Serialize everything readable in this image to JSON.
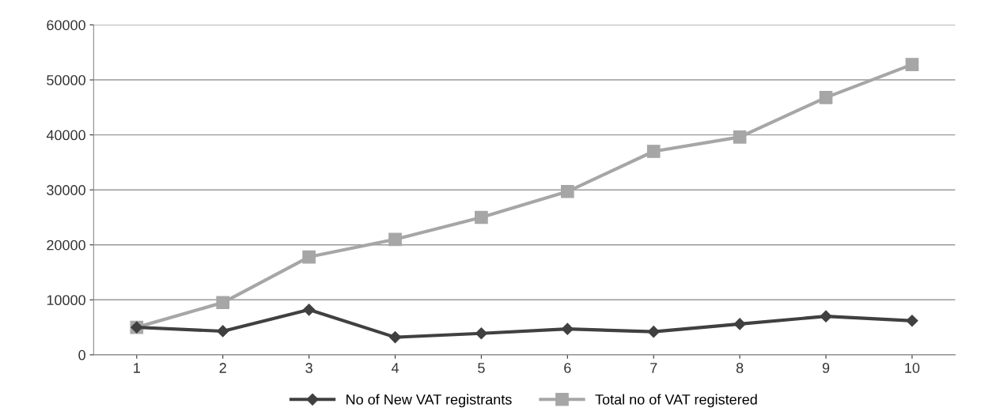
{
  "chart_data": {
    "type": "line",
    "categories": [
      "1",
      "2",
      "3",
      "4",
      "5",
      "6",
      "7",
      "8",
      "9",
      "10"
    ],
    "series": [
      {
        "name": "No of New VAT registrants",
        "color": "#404040",
        "marker": "diamond",
        "values": [
          5000,
          4300,
          8200,
          3200,
          3900,
          4700,
          4200,
          5600,
          7000,
          6200
        ]
      },
      {
        "name": "Total no of VAT registered",
        "color": "#a6a6a6",
        "marker": "square",
        "values": [
          5000,
          9500,
          17800,
          21000,
          25000,
          29700,
          37000,
          39600,
          46800,
          52800
        ]
      }
    ],
    "ylim": [
      0,
      60000
    ],
    "yticks": [
      0,
      10000,
      20000,
      30000,
      40000,
      50000,
      60000
    ],
    "grid": "y",
    "legend": "bottom",
    "line_style": "solid"
  }
}
